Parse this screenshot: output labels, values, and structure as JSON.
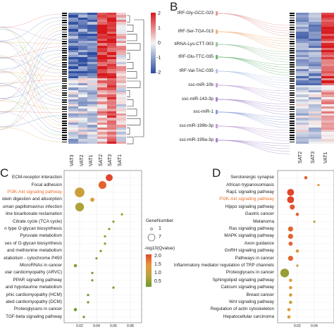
{
  "panels": {
    "a": {
      "columns": [
        "VAT3",
        "VAT2",
        "VAT1",
        "SAT2",
        "SAT3",
        "SAT1"
      ],
      "legend_ticks": [
        "2",
        "1",
        "0",
        "-1",
        "-2"
      ],
      "colors": {
        "high": "#d7191c",
        "mid": "#f4f4f4",
        "low": "#2c4ca0"
      }
    },
    "b": {
      "label": "B",
      "rows": [
        "tRF-Gly-GCC-023",
        "tRF-Ser-TGA-013",
        "tiRNA-Lys-CTT-003",
        "tRF-Glu-TTC-035",
        "tRF-Val-TAC-035",
        "ssc-miR-10b",
        "ssc-miR-143-3p",
        "ssc-miR-1",
        "ssc-miR-199b-3p",
        "ssc-miR-199a-3p"
      ],
      "columns": [
        "SAT2",
        "SAT3",
        "VAT1"
      ]
    },
    "c": {
      "label": "C",
      "terms": [
        {
          "name": "ECM-receptor interaction",
          "x": 0.055,
          "size": 6,
          "q": 2.2,
          "hl": false
        },
        {
          "name": "Focal adhesion",
          "x": 0.047,
          "size": 7,
          "q": 2.0,
          "hl": false
        },
        {
          "name": "PI3K-Akt signaling pathway",
          "x": 0.02,
          "size": 9,
          "q": 1.3,
          "hl": true
        },
        {
          "name": "otein digestion and absorption",
          "x": 0.035,
          "size": 3,
          "q": 1.6,
          "hl": false
        },
        {
          "name": "uman papillomavirus infection",
          "x": 0.02,
          "size": 8,
          "q": 1.0,
          "hl": false
        },
        {
          "name": "line bicarbonate reclamation",
          "x": 0.07,
          "size": 1,
          "q": 0.9,
          "hl": false
        },
        {
          "name": "Citrate cycle (TCA cycle)",
          "x": 0.06,
          "size": 1,
          "q": 0.8,
          "hl": false
        },
        {
          "name": "n type O-glycan biosynthesis",
          "x": 0.055,
          "size": 1,
          "q": 0.8,
          "hl": false
        },
        {
          "name": "Pyruvate metabolism",
          "x": 0.05,
          "size": 1,
          "q": 0.8,
          "hl": false
        },
        {
          "name": "ses of O-glycan biosynthesis",
          "x": 0.05,
          "size": 1,
          "q": 0.7,
          "hl": false
        },
        {
          "name": "and methionine metabolism",
          "x": 0.045,
          "size": 1,
          "q": 0.7,
          "hl": false
        },
        {
          "name": "etabolism - cytochrome P450",
          "x": 0.04,
          "size": 1,
          "q": 0.7,
          "hl": false
        },
        {
          "name": "MicroRNAs in cancer",
          "x": 0.015,
          "size": 2,
          "q": 0.7,
          "hl": false
        },
        {
          "name": "ular cardiomyopathy (ARVC)",
          "x": 0.035,
          "size": 1,
          "q": 0.6,
          "hl": false
        },
        {
          "name": "PPAR signaling pathway",
          "x": 0.035,
          "size": 1,
          "q": 0.6,
          "hl": false
        },
        {
          "name": "and hypotaurine metabolism",
          "x": 0.06,
          "size": 1,
          "q": 0.6,
          "hl": false
        },
        {
          "name": "phic cardiomyopathy (HCM)",
          "x": 0.03,
          "size": 1,
          "q": 0.5,
          "hl": false
        },
        {
          "name": "ated cardiomyopathy (DCM)",
          "x": 0.03,
          "size": 1,
          "q": 0.5,
          "hl": false
        },
        {
          "name": "Proteoglycans in cancer",
          "x": 0.015,
          "size": 2,
          "q": 0.5,
          "hl": false
        },
        {
          "name": "TGF-beta signaling pathway",
          "x": 0.025,
          "size": 1,
          "q": 0.5,
          "hl": false
        }
      ],
      "x_ticks": [
        "0.02",
        "0.04",
        "0.06",
        "0.08"
      ],
      "legend": {
        "size_title": "GeneNumber",
        "size_values": [
          "1",
          "7"
        ],
        "color_title": "-log10(Qvalue)",
        "color_values": [
          "2.0",
          "1.5",
          "1.0",
          "0.5"
        ]
      }
    },
    "d": {
      "label": "D",
      "terms": [
        {
          "name": "Serotonergic synapse",
          "x": 0.03,
          "size": 2,
          "q": 2.0,
          "hl": false
        },
        {
          "name": "African trypanosomiasis",
          "x": 0.045,
          "size": 1,
          "q": 1.6,
          "hl": false
        },
        {
          "name": "Rap1 signaling pathway",
          "x": 0.012,
          "size": 6,
          "q": 2.3,
          "hl": false
        },
        {
          "name": "PI3K-Akt signaling pathway",
          "x": 0.012,
          "size": 6,
          "q": 2.3,
          "hl": true
        },
        {
          "name": "Hippo signaling pathway",
          "x": 0.014,
          "size": 4,
          "q": 2.1,
          "hl": false
        },
        {
          "name": "Gastric cancer",
          "x": 0.02,
          "size": 2,
          "q": 2.0,
          "hl": false
        },
        {
          "name": "Melanoma",
          "x": 0.04,
          "size": 1,
          "q": 1.2,
          "hl": false
        },
        {
          "name": "Ras signaling pathway",
          "x": 0.012,
          "size": 4,
          "q": 2.0,
          "hl": false
        },
        {
          "name": "MAPK signaling pathway",
          "x": 0.012,
          "size": 4,
          "q": 2.0,
          "hl": false
        },
        {
          "name": "Axon guidance",
          "x": 0.012,
          "size": 3,
          "q": 2.0,
          "hl": false
        },
        {
          "name": "GnRH signaling pathway",
          "x": 0.02,
          "size": 2,
          "q": 1.4,
          "hl": false
        },
        {
          "name": "Pathways in cancer",
          "x": 0.012,
          "size": 4,
          "q": 2.0,
          "hl": false
        },
        {
          "name": "Inflammatory mediator regulation of TRP channels",
          "x": 0.02,
          "size": 1,
          "q": 1.2,
          "hl": false
        },
        {
          "name": "Proteoglycans in cancer",
          "x": 0.005,
          "size": 8,
          "q": 0.8,
          "hl": false
        },
        {
          "name": "Sphingolipid signaling pathway",
          "x": 0.012,
          "size": 2,
          "q": 1.6,
          "hl": false
        },
        {
          "name": "Calcium signaling pathway",
          "x": 0.012,
          "size": 2,
          "q": 1.5,
          "hl": false
        },
        {
          "name": "Breast cancer",
          "x": 0.012,
          "size": 2,
          "q": 1.4,
          "hl": false
        },
        {
          "name": "Wnt signaling pathway",
          "x": 0.012,
          "size": 2,
          "q": 1.3,
          "hl": false
        },
        {
          "name": "Regulation of actin cytoskeleton",
          "x": 0.01,
          "size": 2,
          "q": 1.6,
          "hl": false
        },
        {
          "name": "Hepatocellular carcinoma",
          "x": 0.01,
          "size": 2,
          "q": 1.5,
          "hl": false
        }
      ],
      "x_ticks": [
        "0.02",
        "0.04"
      ]
    }
  },
  "colors": {
    "highlight": "#e8702a",
    "curve_blue": "#7b9fd4",
    "curve_red": "#e59a9a",
    "grid": "#d9d9d9"
  }
}
